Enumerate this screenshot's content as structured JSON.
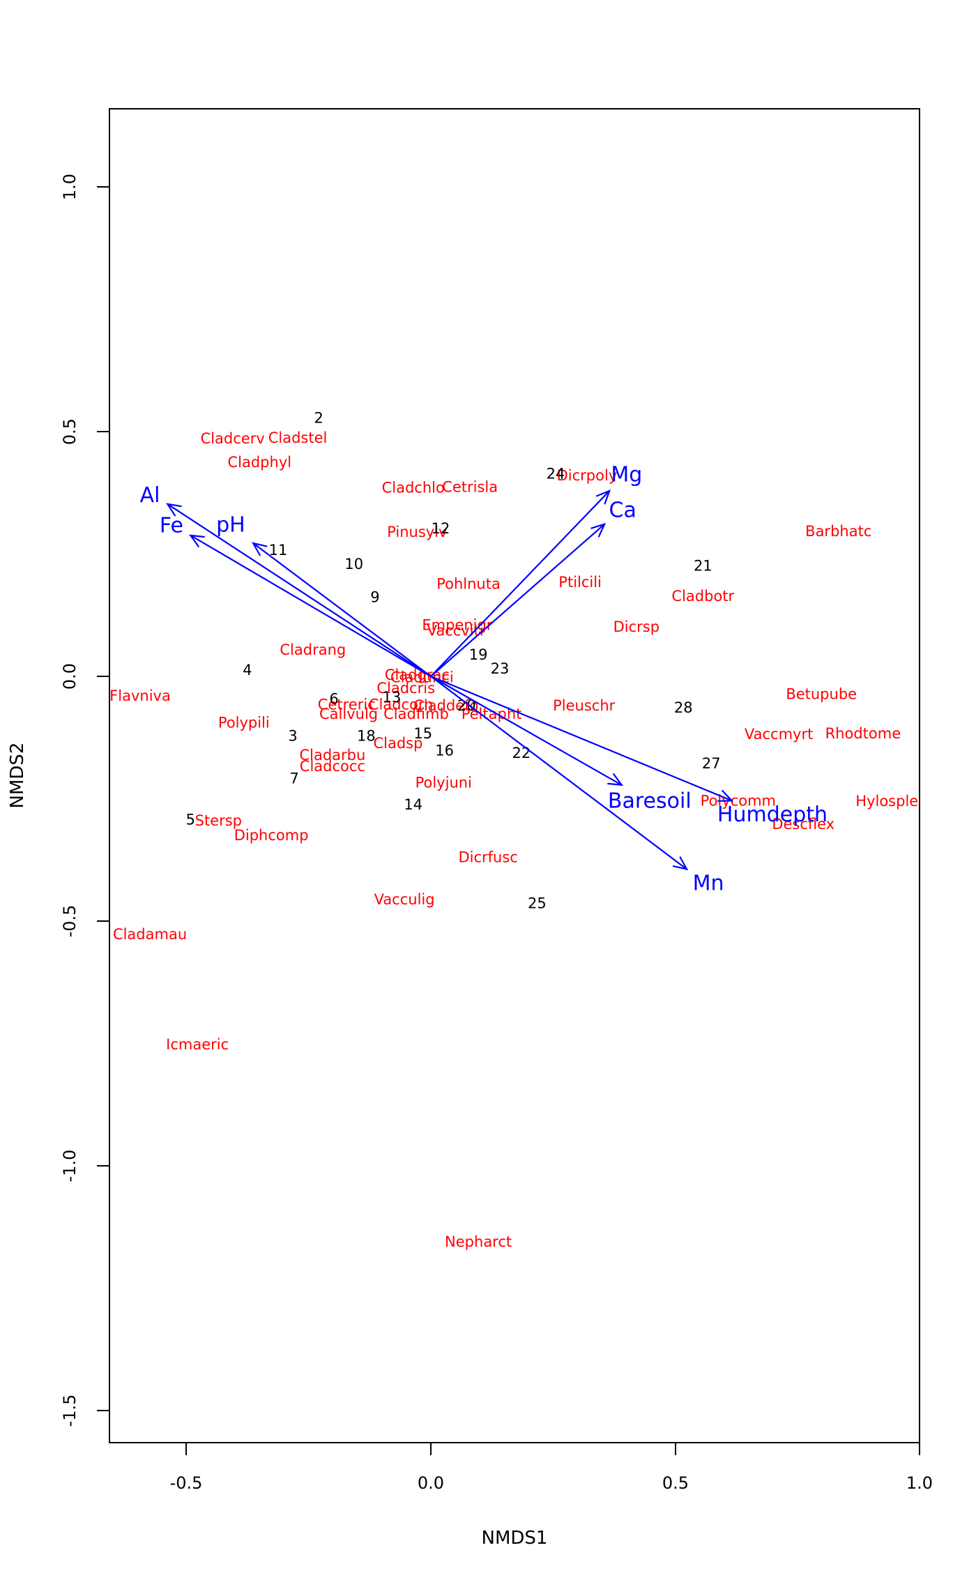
{
  "figure": {
    "background": "#ffffff",
    "plot_type_note": "NMDS ordination biplot with fitted environmental vectors"
  },
  "chart_data": {
    "type": "scatter",
    "subtype": "nmds-ordination-biplot",
    "title": "",
    "xlabel": "NMDS1",
    "ylabel": "NMDS2",
    "xlim": [
      -0.657,
      0.999
    ],
    "ylim": [
      -1.565,
      1.159
    ],
    "grid": false,
    "legend": "none",
    "x_ticks": [
      -0.5,
      0.0,
      0.5,
      1.0
    ],
    "x_tick_labels": [
      "-0.5",
      "0.0",
      "0.5",
      "1.0"
    ],
    "y_ticks": [
      1.0,
      0.5,
      0.0,
      -0.5,
      -1.0,
      -1.5
    ],
    "y_tick_labels": [
      "1.0",
      "0.5",
      "0.0",
      "-0.5",
      "-1.0",
      "-1.5"
    ],
    "colors": {
      "species": "#ff0000",
      "sites": "#000000",
      "vectors": "#0000ff",
      "frame": "#000000"
    },
    "species": [
      {
        "label": "Cladcerv",
        "x": -0.405,
        "y": 0.486
      },
      {
        "label": "Cladstel",
        "x": -0.272,
        "y": 0.487
      },
      {
        "label": "Cladphyl",
        "x": -0.35,
        "y": 0.437
      },
      {
        "label": "Cladchlo",
        "x": -0.036,
        "y": 0.385
      },
      {
        "label": "Cetrisla",
        "x": 0.08,
        "y": 0.387
      },
      {
        "label": "Dicrpoly",
        "x": 0.319,
        "y": 0.41
      },
      {
        "label": "Barbhatc",
        "x": 0.833,
        "y": 0.296
      },
      {
        "label": "Pinusylv",
        "x": -0.028,
        "y": 0.295
      },
      {
        "label": "Pohlnuta",
        "x": 0.077,
        "y": 0.189
      },
      {
        "label": "Ptilcili",
        "x": 0.305,
        "y": 0.192
      },
      {
        "label": "Cladbotr",
        "x": 0.556,
        "y": 0.164
      },
      {
        "label": "Dicrsp",
        "x": 0.42,
        "y": 0.101
      },
      {
        "label": "Empenigr",
        "x": 0.054,
        "y": 0.105
      },
      {
        "label": "Vaccviti",
        "x": 0.05,
        "y": 0.093
      },
      {
        "label": "Cladrang",
        "x": -0.241,
        "y": 0.054
      },
      {
        "label": "Flavniva",
        "x": -0.594,
        "y": -0.04
      },
      {
        "label": "Cladgrac",
        "x": -0.028,
        "y": 0.003
      },
      {
        "label": "Cladunci",
        "x": -0.018,
        "y": -0.002
      },
      {
        "label": "Cladcris",
        "x": -0.051,
        "y": -0.024
      },
      {
        "label": "Cetreric",
        "x": -0.172,
        "y": -0.058
      },
      {
        "label": "Callvulg",
        "x": -0.168,
        "y": -0.077
      },
      {
        "label": "Cladcorn",
        "x": -0.061,
        "y": -0.058
      },
      {
        "label": "Claddefo",
        "x": 0.031,
        "y": -0.06
      },
      {
        "label": "Cladfimb",
        "x": -0.03,
        "y": -0.077
      },
      {
        "label": "Peltapht",
        "x": 0.124,
        "y": -0.077
      },
      {
        "label": "Pleuschr",
        "x": 0.313,
        "y": -0.06
      },
      {
        "label": "Betupube",
        "x": 0.798,
        "y": -0.036
      },
      {
        "label": "Polypili",
        "x": -0.382,
        "y": -0.095
      },
      {
        "label": "Vaccmyrt",
        "x": 0.711,
        "y": -0.118
      },
      {
        "label": "Rhodtome",
        "x": 0.883,
        "y": -0.117
      },
      {
        "label": "Cladsp",
        "x": -0.067,
        "y": -0.137
      },
      {
        "label": "Cladarbu",
        "x": -0.201,
        "y": -0.161
      },
      {
        "label": "Cladcocc",
        "x": -0.201,
        "y": -0.184
      },
      {
        "label": "Polyjuni",
        "x": 0.026,
        "y": -0.217
      },
      {
        "label": "Polycomm",
        "x": 0.628,
        "y": -0.254
      },
      {
        "label": "Hylosple",
        "x": 0.932,
        "y": -0.255
      },
      {
        "label": "Descflex",
        "x": 0.761,
        "y": -0.302
      },
      {
        "label": "Stersp",
        "x": -0.434,
        "y": -0.295
      },
      {
        "label": "Diphcomp",
        "x": -0.326,
        "y": -0.325
      },
      {
        "label": "Dicrfusc",
        "x": 0.117,
        "y": -0.37
      },
      {
        "label": "Vacculig",
        "x": -0.054,
        "y": -0.456
      },
      {
        "label": "Cladamau",
        "x": -0.574,
        "y": -0.527
      },
      {
        "label": "Icmaeric",
        "x": -0.477,
        "y": -0.752
      },
      {
        "label": "Nepharct",
        "x": 0.097,
        "y": -1.155
      }
    ],
    "sites": [
      {
        "label": "2",
        "x": -0.229,
        "y": 0.528
      },
      {
        "label": "24",
        "x": 0.255,
        "y": 0.414
      },
      {
        "label": "12",
        "x": 0.02,
        "y": 0.302
      },
      {
        "label": "11",
        "x": -0.312,
        "y": 0.258
      },
      {
        "label": "10",
        "x": -0.157,
        "y": 0.229
      },
      {
        "label": "21",
        "x": 0.556,
        "y": 0.226
      },
      {
        "label": "9",
        "x": -0.114,
        "y": 0.162
      },
      {
        "label": "19",
        "x": 0.097,
        "y": 0.044
      },
      {
        "label": "23",
        "x": 0.141,
        "y": 0.016
      },
      {
        "label": "4",
        "x": -0.375,
        "y": 0.013
      },
      {
        "label": "6",
        "x": -0.198,
        "y": -0.046
      },
      {
        "label": "13",
        "x": -0.08,
        "y": -0.043
      },
      {
        "label": "20",
        "x": 0.073,
        "y": -0.06
      },
      {
        "label": "28",
        "x": 0.516,
        "y": -0.064
      },
      {
        "label": "3",
        "x": -0.282,
        "y": -0.122
      },
      {
        "label": "18",
        "x": -0.132,
        "y": -0.122
      },
      {
        "label": "15",
        "x": -0.016,
        "y": -0.117
      },
      {
        "label": "16",
        "x": 0.028,
        "y": -0.152
      },
      {
        "label": "22",
        "x": 0.185,
        "y": -0.157
      },
      {
        "label": "27",
        "x": 0.573,
        "y": -0.178
      },
      {
        "label": "7",
        "x": -0.279,
        "y": -0.209
      },
      {
        "label": "14",
        "x": -0.036,
        "y": -0.262
      },
      {
        "label": "5",
        "x": -0.491,
        "y": -0.293
      },
      {
        "label": "25",
        "x": 0.217,
        "y": -0.464
      }
    ],
    "vectors": [
      {
        "label": "Al",
        "x": -0.538,
        "y": 0.352,
        "label_x": -0.574,
        "label_y": 0.37
      },
      {
        "label": "Fe",
        "x": -0.491,
        "y": 0.288,
        "label_x": -0.53,
        "label_y": 0.308
      },
      {
        "label": "pH",
        "x": -0.363,
        "y": 0.272,
        "label_x": -0.409,
        "label_y": 0.309
      },
      {
        "label": "Mg",
        "x": 0.365,
        "y": 0.379,
        "label_x": 0.4,
        "label_y": 0.412
      },
      {
        "label": "Ca",
        "x": 0.355,
        "y": 0.311,
        "label_x": 0.392,
        "label_y": 0.339
      },
      {
        "label": "Baresoil",
        "x": 0.39,
        "y": -0.222,
        "label_x": 0.447,
        "label_y": -0.255
      },
      {
        "label": "Humdepth",
        "x": 0.615,
        "y": -0.254,
        "label_x": 0.698,
        "label_y": -0.283
      },
      {
        "label": "Mn",
        "x": 0.523,
        "y": -0.394,
        "label_x": 0.567,
        "label_y": -0.423
      }
    ],
    "vector_origin": {
      "x": 0.0,
      "y": 0.0
    }
  }
}
